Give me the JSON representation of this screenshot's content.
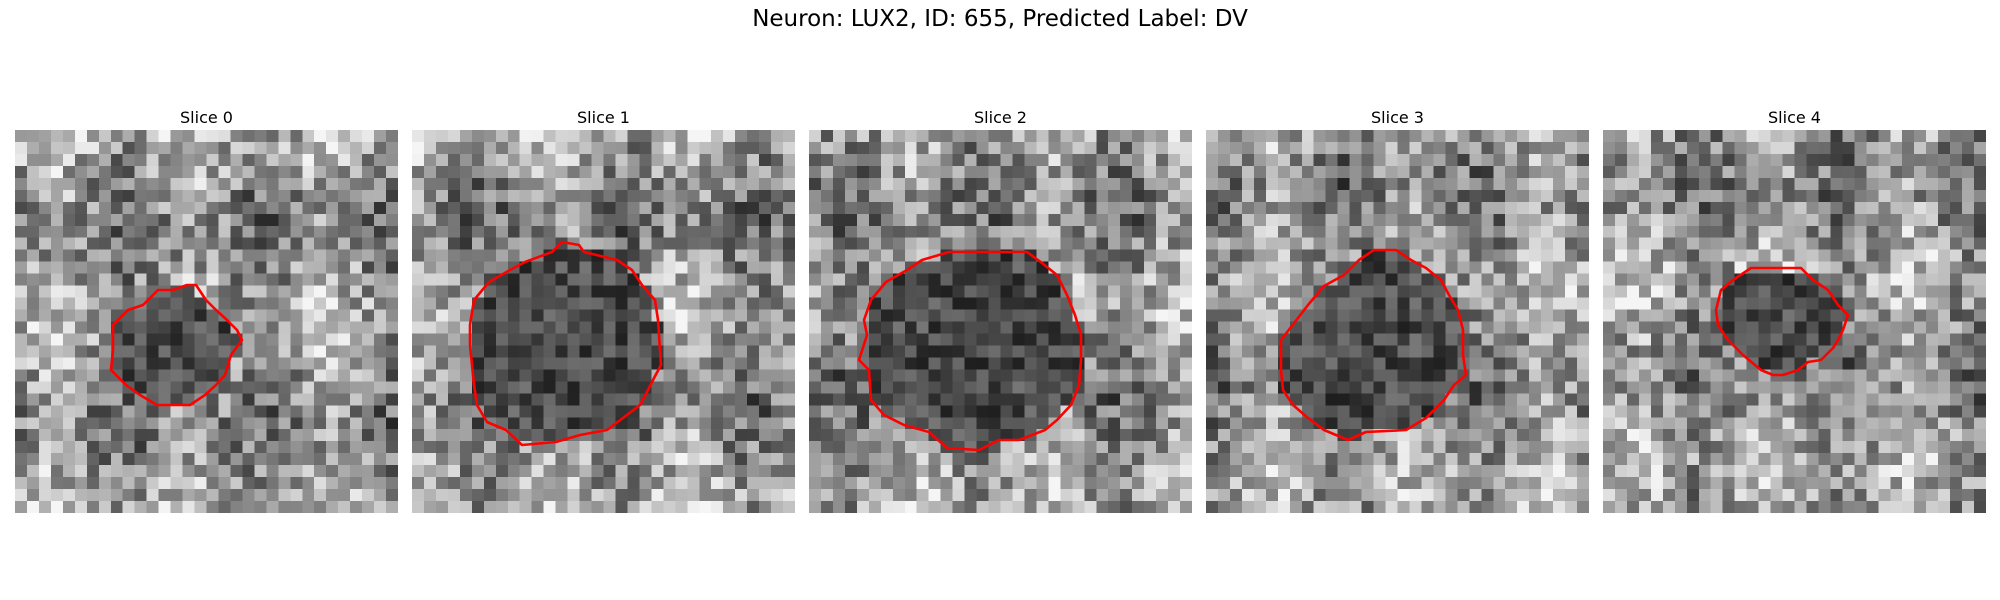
{
  "figure": {
    "title": "Neuron: LUX2, ID: 655, Predicted Label: DV"
  },
  "colors": {
    "contour": "#ff0000",
    "background": "#ffffff"
  },
  "slices": [
    {
      "label": "Slice 0"
    },
    {
      "label": "Slice 1"
    },
    {
      "label": "Slice 2"
    },
    {
      "label": "Slice 3"
    },
    {
      "label": "Slice 4"
    }
  ]
}
